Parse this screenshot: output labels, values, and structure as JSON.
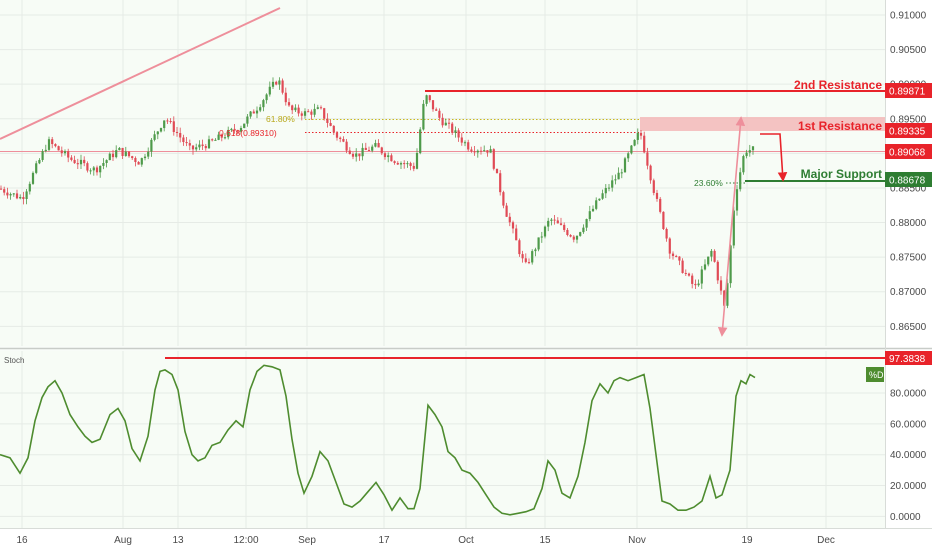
{
  "chart_data": [
    {
      "type": "candlestick",
      "panel": "price",
      "y_ticks": [
        "0.91000",
        "0.90500",
        "0.90000",
        "0.89500",
        "0.89000",
        "0.88500",
        "0.88000",
        "0.87500",
        "0.87000",
        "0.86500"
      ],
      "y_tick_values": [
        0.91,
        0.905,
        0.9,
        0.895,
        0.89,
        0.885,
        0.88,
        0.875,
        0.87,
        0.865
      ],
      "ylim": [
        0.8636,
        0.9113
      ],
      "x_ticks": [
        "16",
        "Aug",
        "13",
        "12:00",
        "Sep",
        "17",
        "Oct",
        "15",
        "Nov",
        "19",
        "Dec"
      ],
      "grid": true,
      "price_path": [
        [
          0,
          0.8849
        ],
        [
          22,
          0.8835
        ],
        [
          48,
          0.8917
        ],
        [
          70,
          0.8892
        ],
        [
          95,
          0.8876
        ],
        [
          118,
          0.8905
        ],
        [
          140,
          0.8887
        ],
        [
          165,
          0.8952
        ],
        [
          190,
          0.8905
        ],
        [
          210,
          0.8915
        ],
        [
          240,
          0.8938
        ],
        [
          258,
          0.8968
        ],
        [
          278,
          0.9008
        ],
        [
          290,
          0.8962
        ],
        [
          305,
          0.8958
        ],
        [
          320,
          0.8963
        ],
        [
          335,
          0.8928
        ],
        [
          355,
          0.8897
        ],
        [
          375,
          0.891
        ],
        [
          395,
          0.889
        ],
        [
          415,
          0.888
        ],
        [
          425,
          0.8985
        ],
        [
          440,
          0.895
        ],
        [
          470,
          0.8908
        ],
        [
          490,
          0.8905
        ],
        [
          505,
          0.882
        ],
        [
          525,
          0.8735
        ],
        [
          550,
          0.8805
        ],
        [
          575,
          0.8778
        ],
        [
          600,
          0.8836
        ],
        [
          620,
          0.8872
        ],
        [
          640,
          0.8932
        ],
        [
          655,
          0.884
        ],
        [
          670,
          0.876
        ],
        [
          695,
          0.8705
        ],
        [
          712,
          0.876
        ],
        [
          725,
          0.8672
        ],
        [
          735,
          0.884
        ],
        [
          745,
          0.8905
        ],
        [
          755,
          0.8905
        ]
      ],
      "levels": [
        {
          "label": "2nd Resistance",
          "value": "0.89871",
          "color": "#e8232a"
        },
        {
          "label": "1st Resistance",
          "value": "0.89335",
          "color": "#e8232a"
        },
        {
          "label": "",
          "value": "0.89068",
          "color": "#e8232a"
        },
        {
          "label": "Major Support",
          "value": "0.88678",
          "color": "#2e7d32"
        }
      ],
      "annotations": {
        "fib_618": "61.80%",
        "fib_618_level": "0.618(0.89310)",
        "fib_236": "23.60%"
      }
    },
    {
      "type": "line",
      "panel": "oscillator",
      "title": "Stoch",
      "series_label": "%D",
      "y_ticks": [
        "80.0000",
        "60.0000",
        "40.0000",
        "20.0000",
        "0.0000"
      ],
      "y_tick_values": [
        80,
        60,
        40,
        20,
        0
      ],
      "ylim": [
        -3,
        104
      ],
      "level": {
        "value": "97.3838",
        "color": "#e8232a"
      },
      "series": [
        {
          "name": "%D",
          "color": "#4e8c2f",
          "points": [
            [
              0,
              40
            ],
            [
              10,
              38
            ],
            [
              20,
              28
            ],
            [
              28,
              38
            ],
            [
              35,
              62
            ],
            [
              42,
              77
            ],
            [
              48,
              84
            ],
            [
              55,
              88
            ],
            [
              62,
              80
            ],
            [
              70,
              66
            ],
            [
              78,
              58
            ],
            [
              85,
              52
            ],
            [
              92,
              48
            ],
            [
              100,
              50
            ],
            [
              110,
              66
            ],
            [
              118,
              70
            ],
            [
              125,
              62
            ],
            [
              132,
              44
            ],
            [
              140,
              36
            ],
            [
              148,
              52
            ],
            [
              155,
              82
            ],
            [
              160,
              94
            ],
            [
              165,
              95
            ],
            [
              172,
              92
            ],
            [
              178,
              82
            ],
            [
              185,
              55
            ],
            [
              192,
              40
            ],
            [
              198,
              36
            ],
            [
              205,
              38
            ],
            [
              212,
              46
            ],
            [
              220,
              48
            ],
            [
              228,
              56
            ],
            [
              236,
              62
            ],
            [
              243,
              58
            ],
            [
              250,
              82
            ],
            [
              257,
              94
            ],
            [
              264,
              98
            ],
            [
              272,
              97
            ],
            [
              280,
              95
            ],
            [
              286,
              78
            ],
            [
              292,
              50
            ],
            [
              298,
              28
            ],
            [
              304,
              15
            ],
            [
              312,
              26
            ],
            [
              320,
              42
            ],
            [
              328,
              36
            ],
            [
              336,
              22
            ],
            [
              344,
              8
            ],
            [
              352,
              6
            ],
            [
              360,
              10
            ],
            [
              368,
              16
            ],
            [
              376,
              22
            ],
            [
              384,
              14
            ],
            [
              392,
              4
            ],
            [
              400,
              12
            ],
            [
              408,
              5
            ],
            [
              414,
              5
            ],
            [
              420,
              18
            ],
            [
              428,
              72
            ],
            [
              435,
              66
            ],
            [
              442,
              58
            ],
            [
              448,
              42
            ],
            [
              455,
              38
            ],
            [
              462,
              30
            ],
            [
              470,
              28
            ],
            [
              478,
              22
            ],
            [
              486,
              14
            ],
            [
              494,
              6
            ],
            [
              502,
              2
            ],
            [
              510,
              1
            ],
            [
              518,
              2
            ],
            [
              526,
              3
            ],
            [
              534,
              5
            ],
            [
              542,
              18
            ],
            [
              548,
              36
            ],
            [
              555,
              30
            ],
            [
              562,
              15
            ],
            [
              570,
              12
            ],
            [
              578,
              26
            ],
            [
              585,
              48
            ],
            [
              592,
              75
            ],
            [
              600,
              86
            ],
            [
              608,
              80
            ],
            [
              614,
              88
            ],
            [
              620,
              90
            ],
            [
              628,
              88
            ],
            [
              636,
              90
            ],
            [
              644,
              92
            ],
            [
              650,
              70
            ],
            [
              656,
              40
            ],
            [
              662,
              10
            ],
            [
              670,
              8
            ],
            [
              678,
              4
            ],
            [
              686,
              4
            ],
            [
              694,
              6
            ],
            [
              702,
              10
            ],
            [
              710,
              26
            ],
            [
              716,
              12
            ],
            [
              722,
              14
            ],
            [
              730,
              30
            ],
            [
              736,
              78
            ],
            [
              741,
              88
            ],
            [
              746,
              86
            ],
            [
              750,
              92
            ],
            [
              755,
              90
            ]
          ]
        }
      ]
    }
  ]
}
